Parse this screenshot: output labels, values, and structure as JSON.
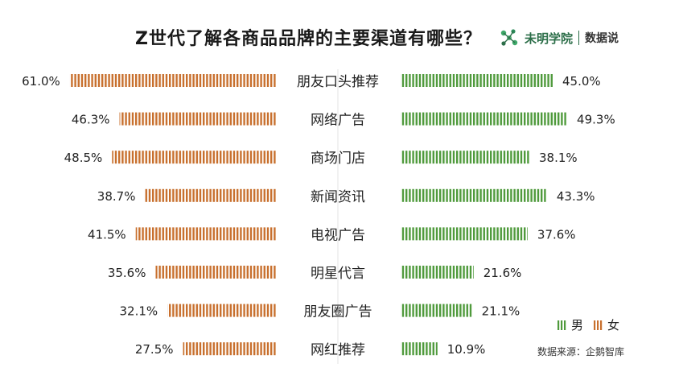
{
  "title": "Z世代了解各商品品牌的主要渠道有哪些？",
  "brand": {
    "name": "未明学院",
    "tag": "数据说",
    "icon": "molecule-logo-icon"
  },
  "source": "数据来源：企鹅智库",
  "colors": {
    "male": "#4f9a3c",
    "female": "#c8702e"
  },
  "chart_data": {
    "type": "bar",
    "orientation": "horizontal-butterfly",
    "categories": [
      "朋友口头推荐",
      "网络广告",
      "商场门店",
      "新闻资讯",
      "电视广告",
      "明星代言",
      "朋友圈广告",
      "网红推荐"
    ],
    "series": [
      {
        "name": "男",
        "side": "right",
        "values": [
          45.0,
          49.3,
          38.1,
          43.3,
          37.6,
          21.6,
          21.1,
          10.9
        ],
        "labels": [
          "45.0%",
          "49.3%",
          "38.1%",
          "43.3%",
          "37.6%",
          "21.6%",
          "21.1%",
          "10.9%"
        ]
      },
      {
        "name": "女",
        "side": "left",
        "values": [
          61.0,
          46.3,
          48.5,
          38.7,
          41.5,
          35.6,
          32.1,
          27.5
        ],
        "labels": [
          "61.0%",
          "46.3%",
          "48.5%",
          "38.7%",
          "41.5%",
          "35.6%",
          "32.1%",
          "27.5%"
        ]
      }
    ],
    "legend": "bottom-right",
    "grid": false
  }
}
